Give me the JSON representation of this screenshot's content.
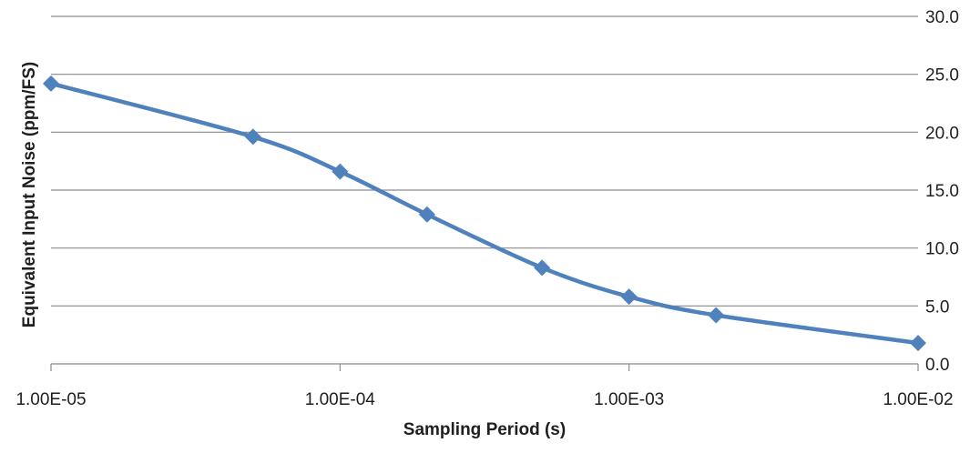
{
  "chart_data": {
    "type": "line",
    "xlabel": "Sampling Period (s)",
    "ylabel": "Equivalent Input Noise (ppm/FS)",
    "x_scale": "log",
    "xlim": [
      1e-05,
      0.01
    ],
    "ylim": [
      0,
      30
    ],
    "x_ticks": [
      1e-05,
      0.0001,
      0.001,
      0.01
    ],
    "x_tick_labels": [
      "1.00E-05",
      "1.00E-04",
      "1.00E-03",
      "1.00E-02"
    ],
    "y_ticks": [
      0,
      5,
      10,
      15,
      20,
      25,
      30
    ],
    "y_tick_labels": [
      "0.0",
      "5.0",
      "10.0",
      "15.0",
      "20.0",
      "25.0",
      "30.0"
    ],
    "y_axis_side": "right",
    "grid": true,
    "legend": "none",
    "series": [
      {
        "color": "#4f81bd",
        "marker": "diamond",
        "x": [
          1e-05,
          5e-05,
          0.0001,
          0.0002,
          0.0005,
          0.001,
          0.002,
          0.01
        ],
        "y": [
          24.2,
          19.6,
          16.6,
          12.9,
          8.3,
          5.8,
          4.2,
          1.8
        ]
      }
    ]
  }
}
